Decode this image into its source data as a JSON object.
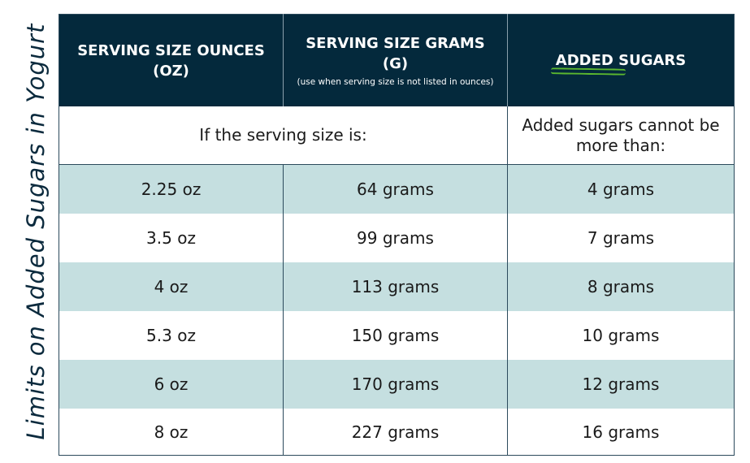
{
  "title": "Limits on Added Sugars in Yogurt",
  "headers": {
    "ounces": "SERVING SIZE OUNCES (OZ)",
    "grams": "SERVING SIZE GRAMS (G)",
    "grams_note": "(use when serving size is not listed in ounces)",
    "added_word": "ADDED",
    "sugars_word": "SUGARS"
  },
  "subheaders": {
    "serving": "If the serving size is:",
    "limit": "Added sugars cannot be more than:"
  },
  "accent_color": "#5cb82e",
  "header_color": "#04293c",
  "row_tint": "#c5dfe0",
  "rows": [
    {
      "oz": "2.25 oz",
      "grams": "64 grams",
      "sugars": "4 grams"
    },
    {
      "oz": "3.5 oz",
      "grams": "99 grams",
      "sugars": "7 grams"
    },
    {
      "oz": "4 oz",
      "grams": "113 grams",
      "sugars": "8 grams"
    },
    {
      "oz": "5.3 oz",
      "grams": "150 grams",
      "sugars": "10 grams"
    },
    {
      "oz": "6 oz",
      "grams": "170 grams",
      "sugars": "12 grams"
    },
    {
      "oz": "8 oz",
      "grams": "227 grams",
      "sugars": "16 grams"
    }
  ]
}
